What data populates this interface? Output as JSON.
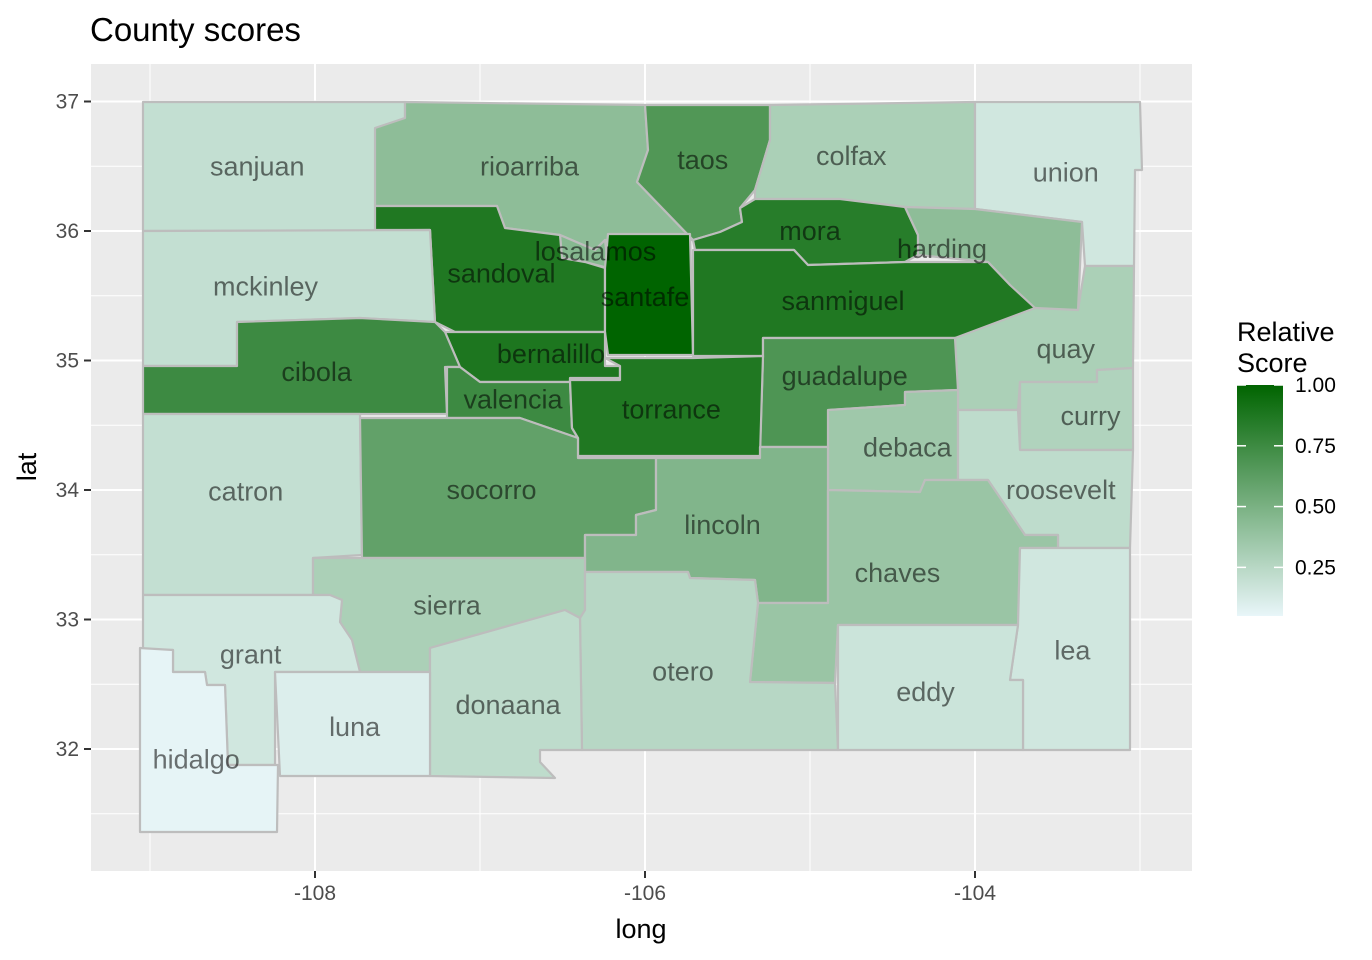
{
  "title": "County scores",
  "axes": {
    "x": {
      "label": "long",
      "ticks": [
        -108,
        -106,
        -104
      ],
      "tick_labels": [
        "-108",
        "-106",
        "-104"
      ]
    },
    "y": {
      "label": "lat",
      "ticks": [
        32,
        33,
        34,
        35,
        36,
        37
      ],
      "tick_labels": [
        "32",
        "33",
        "34",
        "35",
        "36",
        "37"
      ]
    }
  },
  "legend": {
    "title_line1": "Relative",
    "title_line2": "Score",
    "breaks": [
      1.0,
      0.75,
      0.5,
      0.25
    ],
    "break_labels": [
      "1.00",
      "0.75",
      "0.50",
      "0.25"
    ],
    "range": [
      0.05,
      1.0
    ],
    "color_low": "#e8f6f9",
    "color_high": "#006400"
  },
  "colors": {
    "panel_background": "#ebebeb",
    "grid": "#ffffff",
    "county_border": "#bdbdbd"
  },
  "chart_data": {
    "type": "choropleth",
    "title": "County scores",
    "xlabel": "long",
    "ylabel": "lat",
    "fill_variable": "Relative Score",
    "counties": [
      {
        "name": "sanjuan",
        "score": 0.2,
        "label_lon": -108.35,
        "label_lat": 36.5
      },
      {
        "name": "rioarriba",
        "score": 0.42,
        "label_lon": -106.7,
        "label_lat": 36.5
      },
      {
        "name": "taos",
        "score": 0.67,
        "label_lon": -105.65,
        "label_lat": 36.55
      },
      {
        "name": "colfax",
        "score": 0.3,
        "label_lon": -104.75,
        "label_lat": 36.58
      },
      {
        "name": "union",
        "score": 0.15,
        "label_lon": -103.45,
        "label_lat": 36.45
      },
      {
        "name": "losalamos",
        "score": 0.45,
        "label_lon": -106.3,
        "label_lat": 35.84
      },
      {
        "name": "sandoval",
        "score": 0.87,
        "label_lon": -106.87,
        "label_lat": 35.67
      },
      {
        "name": "mora",
        "score": 0.84,
        "label_lon": -105.0,
        "label_lat": 36.0
      },
      {
        "name": "harding",
        "score": 0.42,
        "label_lon": -104.2,
        "label_lat": 35.86
      },
      {
        "name": "mckinley",
        "score": 0.2,
        "label_lon": -108.3,
        "label_lat": 35.57
      },
      {
        "name": "santafe",
        "score": 1.0,
        "label_lon": -106.0,
        "label_lat": 35.49
      },
      {
        "name": "sanmiguel",
        "score": 0.87,
        "label_lon": -104.8,
        "label_lat": 35.46
      },
      {
        "name": "bernalillo",
        "score": 0.88,
        "label_lon": -106.57,
        "label_lat": 35.05
      },
      {
        "name": "cibola",
        "score": 0.75,
        "label_lon": -107.99,
        "label_lat": 34.91
      },
      {
        "name": "quay",
        "score": 0.3,
        "label_lon": -103.45,
        "label_lat": 35.09
      },
      {
        "name": "guadalupe",
        "score": 0.68,
        "label_lon": -104.79,
        "label_lat": 34.88
      },
      {
        "name": "valencia",
        "score": 0.75,
        "label_lon": -106.8,
        "label_lat": 34.7
      },
      {
        "name": "torrance",
        "score": 0.87,
        "label_lon": -105.84,
        "label_lat": 34.62
      },
      {
        "name": "curry",
        "score": 0.28,
        "label_lon": -103.3,
        "label_lat": 34.57
      },
      {
        "name": "debaca",
        "score": 0.35,
        "label_lon": -104.41,
        "label_lat": 34.33
      },
      {
        "name": "catron",
        "score": 0.2,
        "label_lon": -108.42,
        "label_lat": 33.99
      },
      {
        "name": "socorro",
        "score": 0.6,
        "label_lon": -106.93,
        "label_lat": 34.0
      },
      {
        "name": "roosevelt",
        "score": 0.22,
        "label_lon": -103.48,
        "label_lat": 34.0
      },
      {
        "name": "lincoln",
        "score": 0.47,
        "label_lon": -105.53,
        "label_lat": 33.73
      },
      {
        "name": "chaves",
        "score": 0.37,
        "label_lon": -104.47,
        "label_lat": 33.36
      },
      {
        "name": "sierra",
        "score": 0.3,
        "label_lon": -107.2,
        "label_lat": 33.11
      },
      {
        "name": "grant",
        "score": 0.15,
        "label_lon": -108.39,
        "label_lat": 32.73
      },
      {
        "name": "lea",
        "score": 0.15,
        "label_lon": -103.41,
        "label_lat": 32.76
      },
      {
        "name": "otero",
        "score": 0.25,
        "label_lon": -105.77,
        "label_lat": 32.6
      },
      {
        "name": "eddy",
        "score": 0.17,
        "label_lon": -104.3,
        "label_lat": 32.44
      },
      {
        "name": "donaana",
        "score": 0.22,
        "label_lon": -106.83,
        "label_lat": 32.34
      },
      {
        "name": "luna",
        "score": 0.1,
        "label_lon": -107.76,
        "label_lat": 32.17
      },
      {
        "name": "hidalgo",
        "score": 0.06,
        "label_lon": -108.72,
        "label_lat": 31.92
      }
    ]
  }
}
